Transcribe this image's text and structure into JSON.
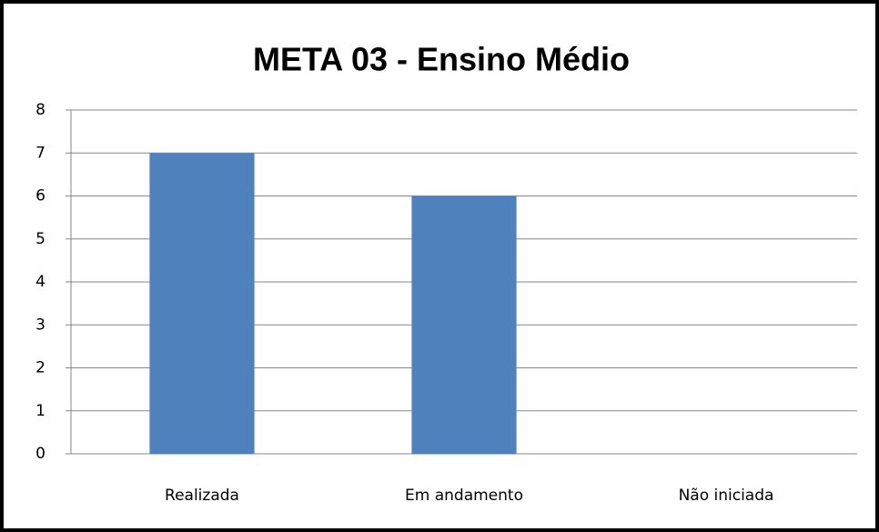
{
  "chart_data": {
    "type": "bar",
    "title": "META 03 - Ensino Médio",
    "categories": [
      "Realizada",
      "Em andamento",
      "Não iniciada"
    ],
    "values": [
      7,
      6,
      0
    ],
    "color": "#4f81bd",
    "ylim": [
      0,
      8
    ],
    "yticks": [
      0,
      1,
      2,
      3,
      4,
      5,
      6,
      7,
      8
    ],
    "grid": true
  }
}
